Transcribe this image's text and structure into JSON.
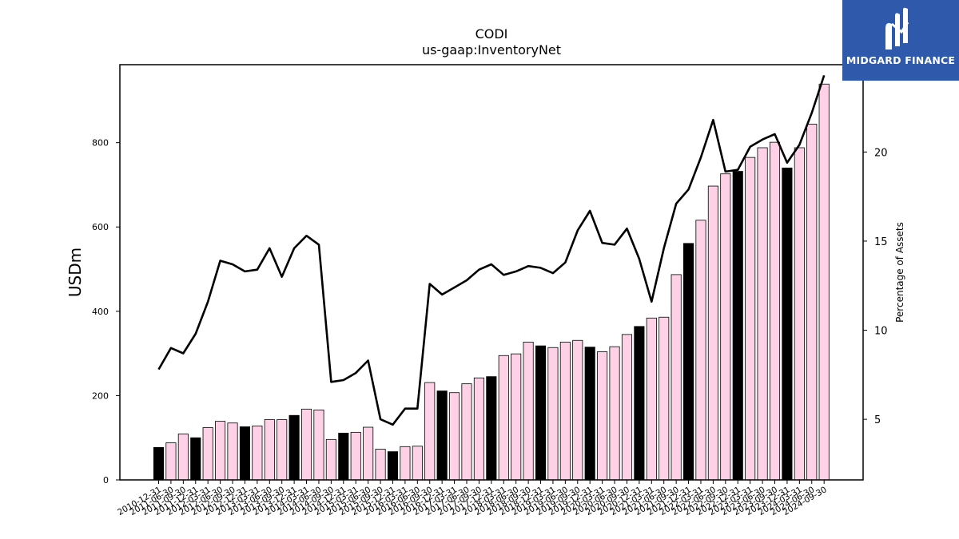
{
  "chart_data": {
    "type": "bar",
    "title": "CODI",
    "subtitle": "us-gaap:InventoryNet",
    "ylabel": "USDm",
    "y2label": "Percentage of Assets",
    "ylim": [
      0,
      985
    ],
    "y2lim": [
      1.6,
      24.9
    ],
    "yticks": [
      0,
      200,
      400,
      600,
      800
    ],
    "y2ticks": [
      5,
      10,
      15,
      20
    ],
    "categories": [
      "2010-12-31",
      "2011-06-30",
      "2011-09-30",
      "2011-12-31",
      "2012-03-31",
      "2012-06-30",
      "2012-09-30",
      "2012-12-31",
      "2013-03-31",
      "2013-06-30",
      "2013-09-30",
      "2013-12-31",
      "2014-03-31",
      "2014-06-30",
      "2014-09-30",
      "2014-12-31",
      "2015-03-31",
      "2015-06-30",
      "2015-09-30",
      "2015-12-31",
      "2016-03-31",
      "2016-06-30",
      "2016-09-30",
      "2016-12-31",
      "2017-03-31",
      "2017-06-30",
      "2017-09-30",
      "2017-12-31",
      "2018-03-31",
      "2018-06-30",
      "2018-09-30",
      "2018-12-31",
      "2019-03-31",
      "2019-06-30",
      "2019-09-30",
      "2019-12-31",
      "2020-03-31",
      "2020-06-30",
      "2020-09-30",
      "2020-12-31",
      "2021-03-31",
      "2021-06-30",
      "2021-09-30",
      "2021-12-31",
      "2022-03-31",
      "2022-06-30",
      "2022-09-30",
      "2022-12-31",
      "2023-03-31",
      "2023-06-30",
      "2023-09-30",
      "2023-12-31",
      "2024-03-31",
      "2024-06-30",
      "2024-09-30"
    ],
    "series": [
      {
        "kind": "bar",
        "values": [
          77,
          88,
          109,
          100,
          124,
          139,
          135,
          126,
          128,
          143,
          143,
          153,
          168,
          166,
          96,
          111,
          113,
          125,
          73,
          67,
          79,
          80,
          231,
          211,
          207,
          228,
          242,
          245,
          295,
          299,
          327,
          318,
          314,
          327,
          331,
          315,
          304,
          316,
          345,
          364,
          384,
          386,
          487,
          561,
          616,
          697,
          726,
          732,
          765,
          788,
          801,
          740,
          788,
          844,
          939
        ],
        "highlight": [
          true,
          false,
          false,
          true,
          false,
          false,
          false,
          true,
          false,
          false,
          false,
          true,
          false,
          false,
          false,
          true,
          false,
          false,
          false,
          true,
          false,
          false,
          false,
          true,
          false,
          false,
          false,
          true,
          false,
          false,
          false,
          true,
          false,
          false,
          false,
          true,
          false,
          false,
          false,
          true,
          false,
          false,
          false,
          true,
          false,
          false,
          false,
          true,
          false,
          false,
          false,
          true,
          false,
          false,
          false
        ],
        "colors": {
          "highlight": "#000000",
          "normal": "#ffd1e6"
        }
      },
      {
        "kind": "line",
        "axis": "right",
        "values": [
          7.8,
          9.0,
          8.7,
          9.8,
          11.6,
          13.9,
          13.7,
          13.3,
          13.4,
          14.6,
          13.0,
          14.6,
          15.3,
          14.8,
          7.1,
          7.2,
          7.6,
          8.3,
          5.0,
          4.7,
          5.6,
          5.6,
          12.6,
          12.0,
          12.4,
          12.8,
          13.4,
          13.7,
          13.1,
          13.3,
          13.6,
          13.5,
          13.2,
          13.8,
          15.6,
          16.7,
          14.9,
          14.8,
          15.7,
          14.0,
          11.6,
          14.6,
          17.1,
          17.9,
          19.7,
          21.8,
          18.9,
          19.0,
          20.3,
          20.7,
          21.0,
          19.4,
          20.4,
          22.2,
          24.3
        ],
        "color": "#000000"
      }
    ]
  },
  "logo": {
    "text": "MIDGARD FINANCE",
    "color": "#2f5aab"
  }
}
